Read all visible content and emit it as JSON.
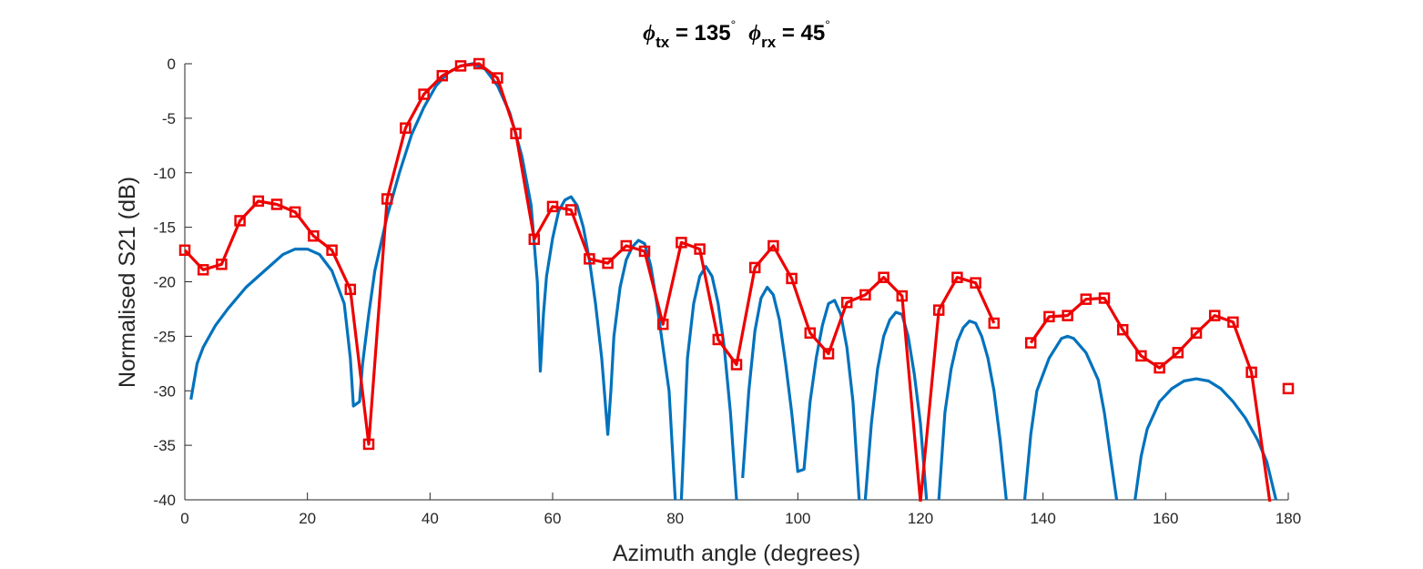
{
  "chart_data": {
    "type": "line",
    "title": {
      "symbol": "ϕ",
      "tx_sub": "tx",
      "tx_value": " = 135",
      "rx_sub": "rx",
      "rx_value": " = 45",
      "degree": "°"
    },
    "xlabel": "Azimuth angle (degrees)",
    "ylabel": "Normalised S21 (dB)",
    "xlim": [
      0,
      180
    ],
    "ylim": [
      -40,
      0
    ],
    "xticks": [
      "0",
      "20",
      "40",
      "60",
      "80",
      "100",
      "120",
      "140",
      "160",
      "180"
    ],
    "yticks": [
      "0",
      "-5",
      "-10",
      "-15",
      "-20",
      "-25",
      "-30",
      "-35",
      "-40"
    ],
    "grid": false,
    "legend": "none",
    "colors": {
      "simulated": "#0072BD",
      "measured": "#EE0000",
      "axis": "#262626"
    },
    "series": [
      {
        "style": "line",
        "segments": [
          [
            [
              1,
              -30.8
            ],
            [
              2,
              -27.5
            ],
            [
              3,
              -26
            ],
            [
              5,
              -24
            ],
            [
              7,
              -22.5
            ],
            [
              10,
              -20.5
            ],
            [
              13,
              -19
            ],
            [
              16,
              -17.5
            ],
            [
              18,
              -17
            ],
            [
              20,
              -17
            ],
            [
              22,
              -17.5
            ],
            [
              24,
              -19
            ],
            [
              26,
              -22
            ],
            [
              27,
              -27
            ],
            [
              27.5,
              -31.4
            ],
            [
              28.5,
              -31
            ],
            [
              29,
              -27.5
            ],
            [
              30,
              -23
            ],
            [
              31,
              -19
            ],
            [
              33,
              -14
            ],
            [
              35,
              -10
            ],
            [
              37,
              -6.5
            ],
            [
              39,
              -4
            ],
            [
              41,
              -2
            ],
            [
              43,
              -0.8
            ],
            [
              45,
              -0.2
            ],
            [
              47,
              0
            ],
            [
              49,
              -0.5
            ],
            [
              51,
              -2
            ],
            [
              53,
              -4.5
            ],
            [
              55,
              -8.5
            ],
            [
              56.5,
              -13
            ],
            [
              57.5,
              -20
            ],
            [
              58,
              -28.2
            ],
            [
              58.5,
              -23
            ],
            [
              59,
              -19.5
            ],
            [
              60,
              -16
            ],
            [
              61,
              -13.5
            ],
            [
              62,
              -12.5
            ],
            [
              63,
              -12.2
            ],
            [
              64,
              -13
            ],
            [
              65,
              -15
            ],
            [
              66,
              -18
            ],
            [
              67,
              -22
            ],
            [
              68,
              -27
            ],
            [
              69,
              -34
            ],
            [
              69.5,
              -30
            ],
            [
              70,
              -25
            ],
            [
              71,
              -20.5
            ],
            [
              72,
              -18
            ],
            [
              73,
              -16.8
            ],
            [
              74,
              -16.2
            ],
            [
              75,
              -16.5
            ],
            [
              76,
              -18.5
            ],
            [
              77,
              -22
            ],
            [
              78,
              -26
            ],
            [
              79,
              -30
            ],
            [
              80,
              -40
            ]
          ],
          [
            [
              81,
              -40
            ],
            [
              82,
              -27
            ],
            [
              83,
              -22
            ],
            [
              84,
              -19.5
            ],
            [
              85,
              -18.6
            ],
            [
              86,
              -19.5
            ],
            [
              87,
              -22
            ],
            [
              88,
              -26
            ],
            [
              89,
              -32
            ],
            [
              90,
              -40
            ]
          ],
          [
            [
              91,
              -38
            ],
            [
              92,
              -30
            ],
            [
              93,
              -24.5
            ],
            [
              94,
              -21.5
            ],
            [
              95,
              -20.5
            ],
            [
              96,
              -21.2
            ],
            [
              97,
              -23.5
            ],
            [
              98,
              -27.5
            ],
            [
              99,
              -32
            ],
            [
              100,
              -37.4
            ],
            [
              101,
              -37.2
            ],
            [
              102,
              -31
            ],
            [
              103,
              -27
            ],
            [
              104,
              -24
            ],
            [
              105,
              -22
            ],
            [
              106,
              -21.7
            ],
            [
              107,
              -23
            ],
            [
              108,
              -26
            ],
            [
              109,
              -31
            ],
            [
              110,
              -40
            ]
          ],
          [
            [
              111,
              -40
            ],
            [
              112,
              -33
            ],
            [
              113,
              -28
            ],
            [
              114,
              -25
            ],
            [
              115,
              -23.5
            ],
            [
              116,
              -22.8
            ],
            [
              117,
              -23
            ],
            [
              118,
              -25
            ],
            [
              119,
              -28.5
            ],
            [
              120,
              -33
            ],
            [
              121,
              -40
            ]
          ],
          [
            [
              123,
              -40
            ],
            [
              124,
              -32
            ],
            [
              125,
              -28
            ],
            [
              126,
              -25.5
            ],
            [
              127,
              -24.2
            ],
            [
              128,
              -23.6
            ],
            [
              129,
              -23.8
            ],
            [
              130,
              -25
            ],
            [
              131,
              -27
            ],
            [
              132,
              -30
            ],
            [
              133,
              -34.5
            ],
            [
              134,
              -40
            ]
          ],
          [
            [
              137,
              -40
            ],
            [
              138,
              -34
            ],
            [
              139,
              -30
            ],
            [
              141,
              -27
            ],
            [
              143,
              -25.2
            ],
            [
              144,
              -25
            ],
            [
              145,
              -25.2
            ],
            [
              147,
              -26.5
            ],
            [
              149,
              -29
            ],
            [
              150,
              -32
            ],
            [
              151,
              -36
            ],
            [
              152,
              -40
            ]
          ],
          [
            [
              155,
              -40
            ],
            [
              156,
              -36
            ],
            [
              157,
              -33.5
            ],
            [
              159,
              -31
            ],
            [
              161,
              -29.8
            ],
            [
              163,
              -29.1
            ],
            [
              165,
              -28.9
            ],
            [
              167,
              -29.1
            ],
            [
              169,
              -29.8
            ],
            [
              171,
              -31
            ],
            [
              173,
              -32.5
            ],
            [
              175,
              -34.5
            ],
            [
              176.5,
              -36.5
            ],
            [
              178,
              -40
            ]
          ]
        ]
      },
      {
        "style": "line-square-markers",
        "segments": [
          [
            [
              0,
              -17.1
            ],
            [
              3,
              -18.9
            ],
            [
              6,
              -18.4
            ],
            [
              9,
              -14.4
            ],
            [
              12,
              -12.6
            ],
            [
              15,
              -12.9
            ],
            [
              18,
              -13.6
            ],
            [
              21,
              -15.8
            ],
            [
              24,
              -17.1
            ],
            [
              27,
              -20.7
            ],
            [
              30,
              -34.9
            ],
            [
              33,
              -12.4
            ],
            [
              36,
              -5.9
            ],
            [
              39,
              -2.8
            ],
            [
              42,
              -1.1
            ],
            [
              45,
              -0.2
            ],
            [
              48,
              0
            ],
            [
              51,
              -1.3
            ],
            [
              54,
              -6.4
            ],
            [
              57,
              -16.1
            ],
            [
              60,
              -13.1
            ],
            [
              63,
              -13.4
            ],
            [
              66,
              -17.9
            ],
            [
              69,
              -18.3
            ],
            [
              72,
              -16.7
            ],
            [
              75,
              -17.2
            ],
            [
              78,
              -23.9
            ],
            [
              81,
              -16.4
            ],
            [
              84,
              -17.0
            ],
            [
              87,
              -25.3
            ],
            [
              90,
              -27.6
            ],
            [
              93,
              -18.7
            ],
            [
              96,
              -16.7
            ],
            [
              99,
              -19.7
            ],
            [
              102,
              -24.7
            ],
            [
              105,
              -26.6
            ],
            [
              108,
              -21.9
            ],
            [
              111,
              -21.2
            ],
            [
              114,
              -19.6
            ],
            [
              117,
              -21.3
            ],
            [
              120,
              -40.2
            ],
            [
              123,
              -22.6
            ],
            [
              126,
              -19.6
            ],
            [
              129,
              -20.1
            ],
            [
              132,
              -23.8
            ]
          ],
          [
            [
              138,
              -25.6
            ],
            [
              141,
              -23.2
            ],
            [
              144,
              -23.1
            ],
            [
              147,
              -21.6
            ],
            [
              150,
              -21.5
            ],
            [
              153,
              -24.4
            ],
            [
              156,
              -26.8
            ],
            [
              159,
              -27.9
            ],
            [
              162,
              -26.5
            ],
            [
              165,
              -24.7
            ],
            [
              168,
              -23.1
            ],
            [
              171,
              -23.7
            ],
            [
              174,
              -28.3
            ],
            [
              177,
              -40.2
            ]
          ],
          [
            [
              180,
              -29.8
            ]
          ]
        ],
        "clipped_points": [
          [
            120,
            -40.2
          ],
          [
            177,
            -40.2
          ]
        ]
      }
    ]
  }
}
